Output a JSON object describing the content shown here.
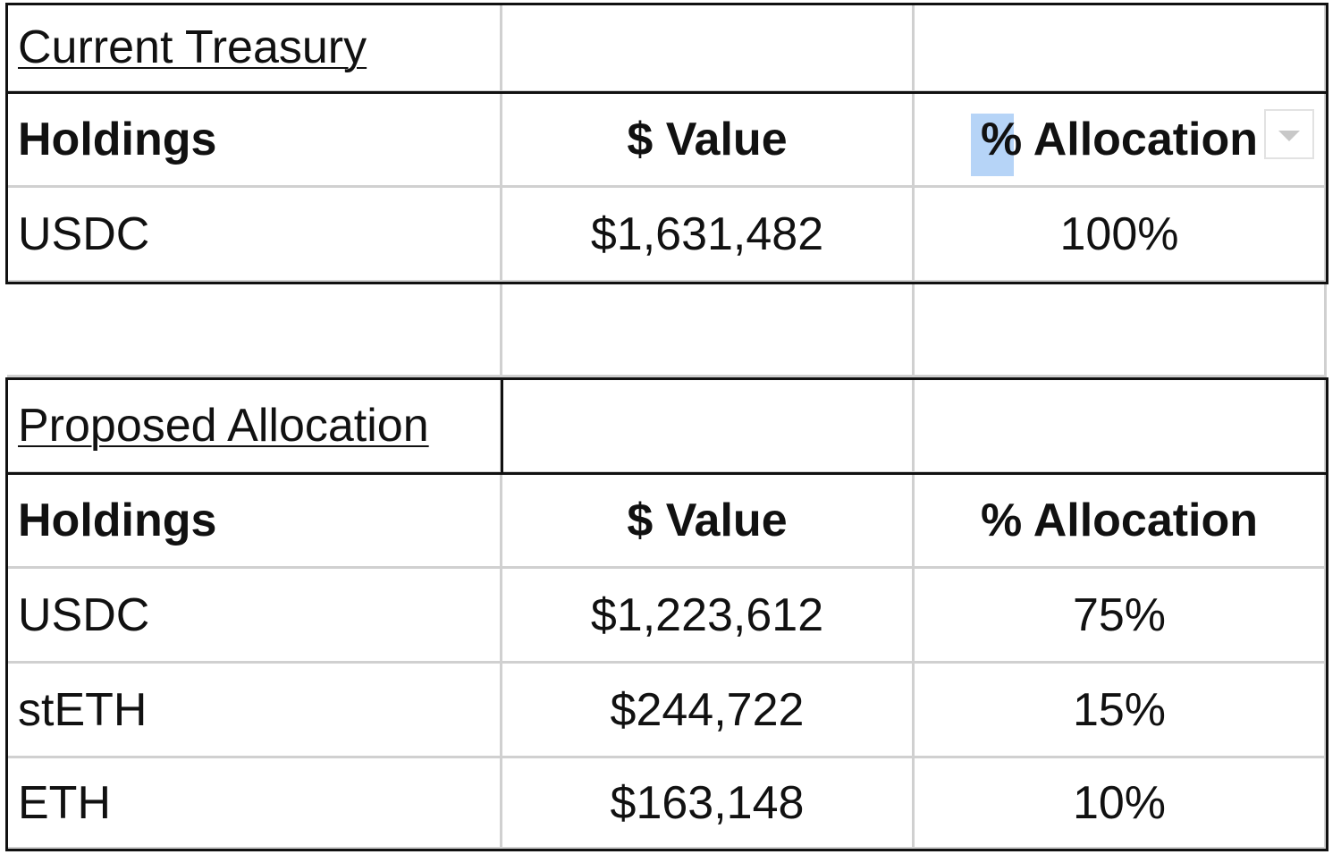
{
  "current_treasury": {
    "title": "Current Treasury",
    "columns": [
      "Holdings",
      "$ Value",
      "% Allocation"
    ],
    "rows": [
      [
        "USDC",
        "$1,631,482",
        "100%"
      ]
    ]
  },
  "proposed_allocation": {
    "title": "Proposed Allocation",
    "columns": [
      "Holdings",
      "$ Value",
      "% Allocation"
    ],
    "rows": [
      [
        "USDC",
        "$1,223,612",
        "75%"
      ],
      [
        "stETH",
        "$244,722",
        "15%"
      ],
      [
        "ETH",
        "$163,148",
        "10%"
      ]
    ]
  }
}
